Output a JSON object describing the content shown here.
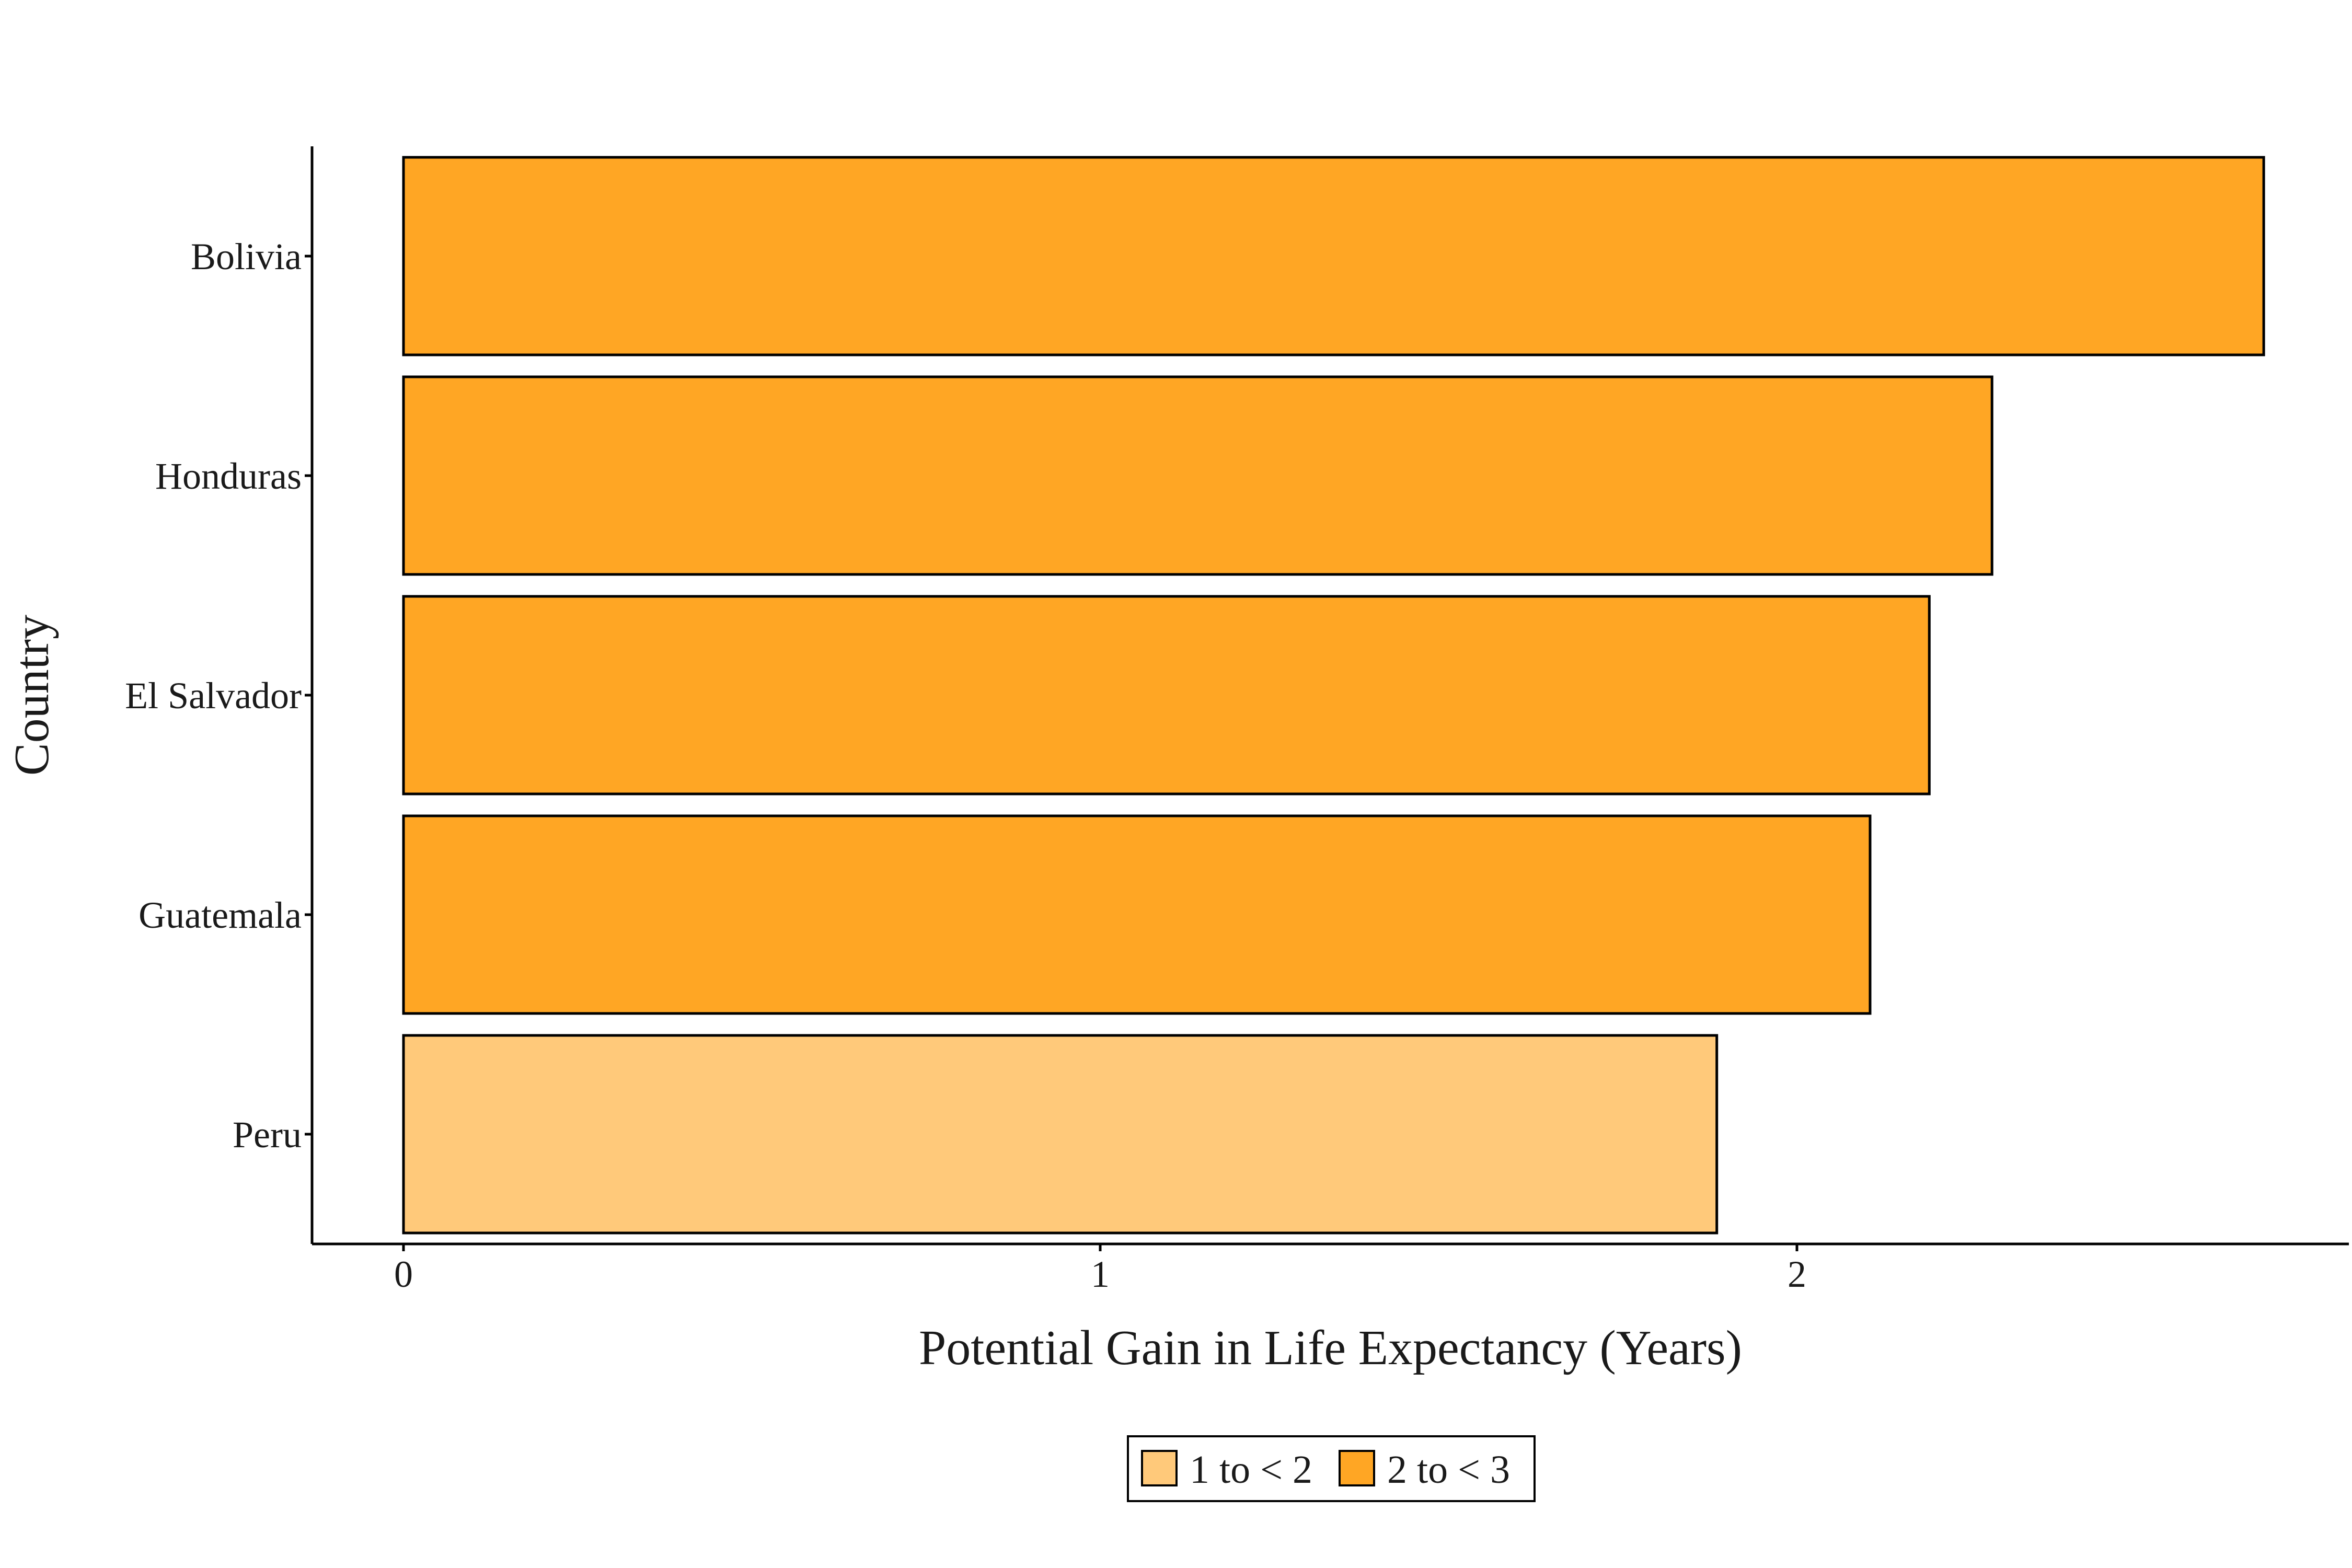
{
  "chart_data": {
    "type": "bar",
    "orientation": "horizontal",
    "title": "",
    "xlabel": "Potential Gain in Life Expectancy (Years)",
    "ylabel": "Country",
    "categories": [
      "Bolivia",
      "Honduras",
      "El Salvador",
      "Guatemala",
      "Peru"
    ],
    "values": [
      2.67,
      2.28,
      2.19,
      2.105,
      1.885
    ],
    "groups": [
      "2 to < 3",
      "2 to < 3",
      "2 to < 3",
      "2 to < 3",
      "1 to < 2"
    ],
    "xlim": [
      -0.13,
      2.8
    ],
    "xticks": [
      0,
      1,
      2
    ],
    "grid": false,
    "legend": {
      "placement": "bottom",
      "entries": [
        {
          "label": "1 to < 2",
          "color": "#FFC97A"
        },
        {
          "label": "2 to < 3",
          "color": "#FFA624"
        }
      ]
    }
  }
}
